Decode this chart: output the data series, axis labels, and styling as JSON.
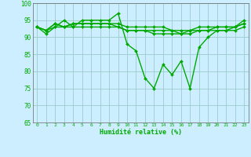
{
  "xlabel": "Humidité relative (%)",
  "xlim": [
    -0.5,
    23.5
  ],
  "ylim": [
    65,
    100
  ],
  "yticks": [
    65,
    70,
    75,
    80,
    85,
    90,
    95,
    100
  ],
  "xticks": [
    0,
    1,
    2,
    3,
    4,
    5,
    6,
    7,
    8,
    9,
    10,
    11,
    12,
    13,
    14,
    15,
    16,
    17,
    18,
    19,
    20,
    21,
    22,
    23
  ],
  "bg_color": "#cceeff",
  "grid_color": "#99cccc",
  "line_color": "#00aa00",
  "marker": "D",
  "markersize": 2.0,
  "linewidth": 1.0,
  "series": [
    [
      93,
      91,
      93,
      95,
      93,
      95,
      95,
      95,
      95,
      97,
      88,
      86,
      78,
      75,
      82,
      79,
      83,
      75,
      87,
      90,
      92,
      92,
      93,
      95
    ],
    [
      93,
      92,
      94,
      93,
      94,
      94,
      94,
      94,
      94,
      93,
      92,
      92,
      92,
      92,
      92,
      92,
      91,
      92,
      93,
      93,
      93,
      93,
      93,
      94
    ],
    [
      93,
      92,
      94,
      93,
      94,
      94,
      94,
      94,
      94,
      94,
      93,
      93,
      93,
      93,
      93,
      92,
      92,
      92,
      92,
      92,
      93,
      93,
      93,
      94
    ],
    [
      93,
      92,
      93,
      93,
      93,
      93,
      93,
      93,
      93,
      93,
      92,
      92,
      92,
      91,
      91,
      91,
      91,
      91,
      92,
      92,
      92,
      92,
      92,
      93
    ]
  ]
}
